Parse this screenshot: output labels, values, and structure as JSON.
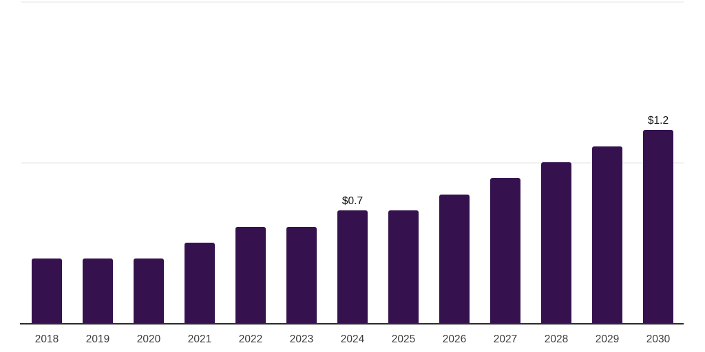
{
  "chart_data": {
    "type": "bar",
    "title": "",
    "xlabel": "",
    "ylabel": "",
    "categories": [
      "2018",
      "2019",
      "2020",
      "2021",
      "2022",
      "2023",
      "2024",
      "2025",
      "2026",
      "2027",
      "2028",
      "2029",
      "2030"
    ],
    "values": [
      0.4,
      0.4,
      0.4,
      0.5,
      0.6,
      0.6,
      0.7,
      0.7,
      0.8,
      0.9,
      1.0,
      1.1,
      1.2
    ],
    "data_labels": [
      "",
      "",
      "",
      "",
      "",
      "",
      "$0.7",
      "",
      "",
      "",
      "",
      "",
      "$1.2"
    ],
    "ylim": [
      0,
      2
    ],
    "gridline_values": [
      1,
      2
    ],
    "grid": "horizontal",
    "legend_position": "none",
    "colors": {
      "bar": "#35124e",
      "gridline": "#f1f1f1",
      "axis_line": "#2b2b2b",
      "x_tick_label": "#3d3d3d",
      "data_label": "#111111",
      "background": "#ffffff"
    }
  }
}
